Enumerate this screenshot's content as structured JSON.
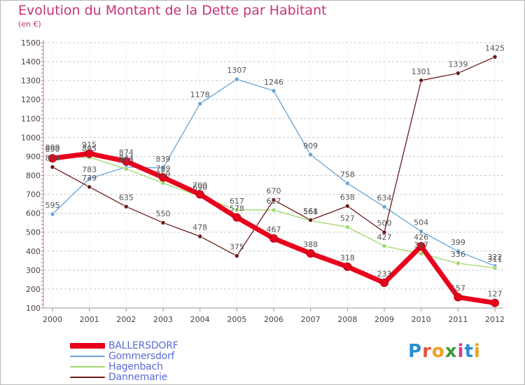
{
  "title": "Evolution du Montant de la Dette par Habitant",
  "unit": "(en €)",
  "logo": {
    "text": "Proxiti",
    "letters": [
      {
        "ch": "P",
        "color": "#2a8fd6"
      },
      {
        "ch": "r",
        "color": "#e0533a"
      },
      {
        "ch": "o",
        "color": "#f0a020"
      },
      {
        "ch": "x",
        "color": "#3a9a3a"
      },
      {
        "ch": "i",
        "color": "#d63a8a"
      },
      {
        "ch": "t",
        "color": "#2a8fd6"
      },
      {
        "ch": "i",
        "color": "#f0a020"
      }
    ]
  },
  "chart_data": {
    "type": "line",
    "title": "Evolution du Montant de la Dette par Habitant",
    "ylabel": "(en €)",
    "xlabel": "",
    "x": [
      "2000",
      "2001",
      "2002",
      "2003",
      "2004",
      "2005",
      "2006",
      "2007",
      "2008",
      "2009",
      "2010",
      "2011",
      "2012"
    ],
    "ylim": [
      100,
      1500
    ],
    "yticks": [
      100,
      200,
      300,
      400,
      500,
      600,
      700,
      800,
      900,
      1000,
      1100,
      1200,
      1300,
      1400,
      1500
    ],
    "grid": "horizontal-dashed",
    "legend": "bottom-left",
    "series": [
      {
        "name": "BALLERSDORF",
        "color": "#e8001c",
        "width": 7,
        "values": [
          890,
          915,
          874,
          789,
          700,
          578,
          467,
          388,
          318,
          233,
          426,
          157,
          127
        ]
      },
      {
        "name": "Gommersdorf",
        "color": "#6aa3d5",
        "width": 1.3,
        "values": [
          595,
          783,
          844,
          839,
          1178,
          1307,
          1246,
          909,
          758,
          634,
          504,
          399,
          322
        ]
      },
      {
        "name": "Hagenbach",
        "color": "#9dd86a",
        "width": 1.3,
        "values": [
          899,
          895,
          834,
          759,
          690,
          617,
          617,
          561,
          527,
          427,
          387,
          336,
          311
        ]
      },
      {
        "name": "Dannemarie",
        "color": "#6b1a1a",
        "width": 1.3,
        "values": [
          844,
          739,
          635,
          550,
          478,
          375,
          670,
          564,
          638,
          500,
          1301,
          1339,
          1425
        ]
      }
    ]
  }
}
